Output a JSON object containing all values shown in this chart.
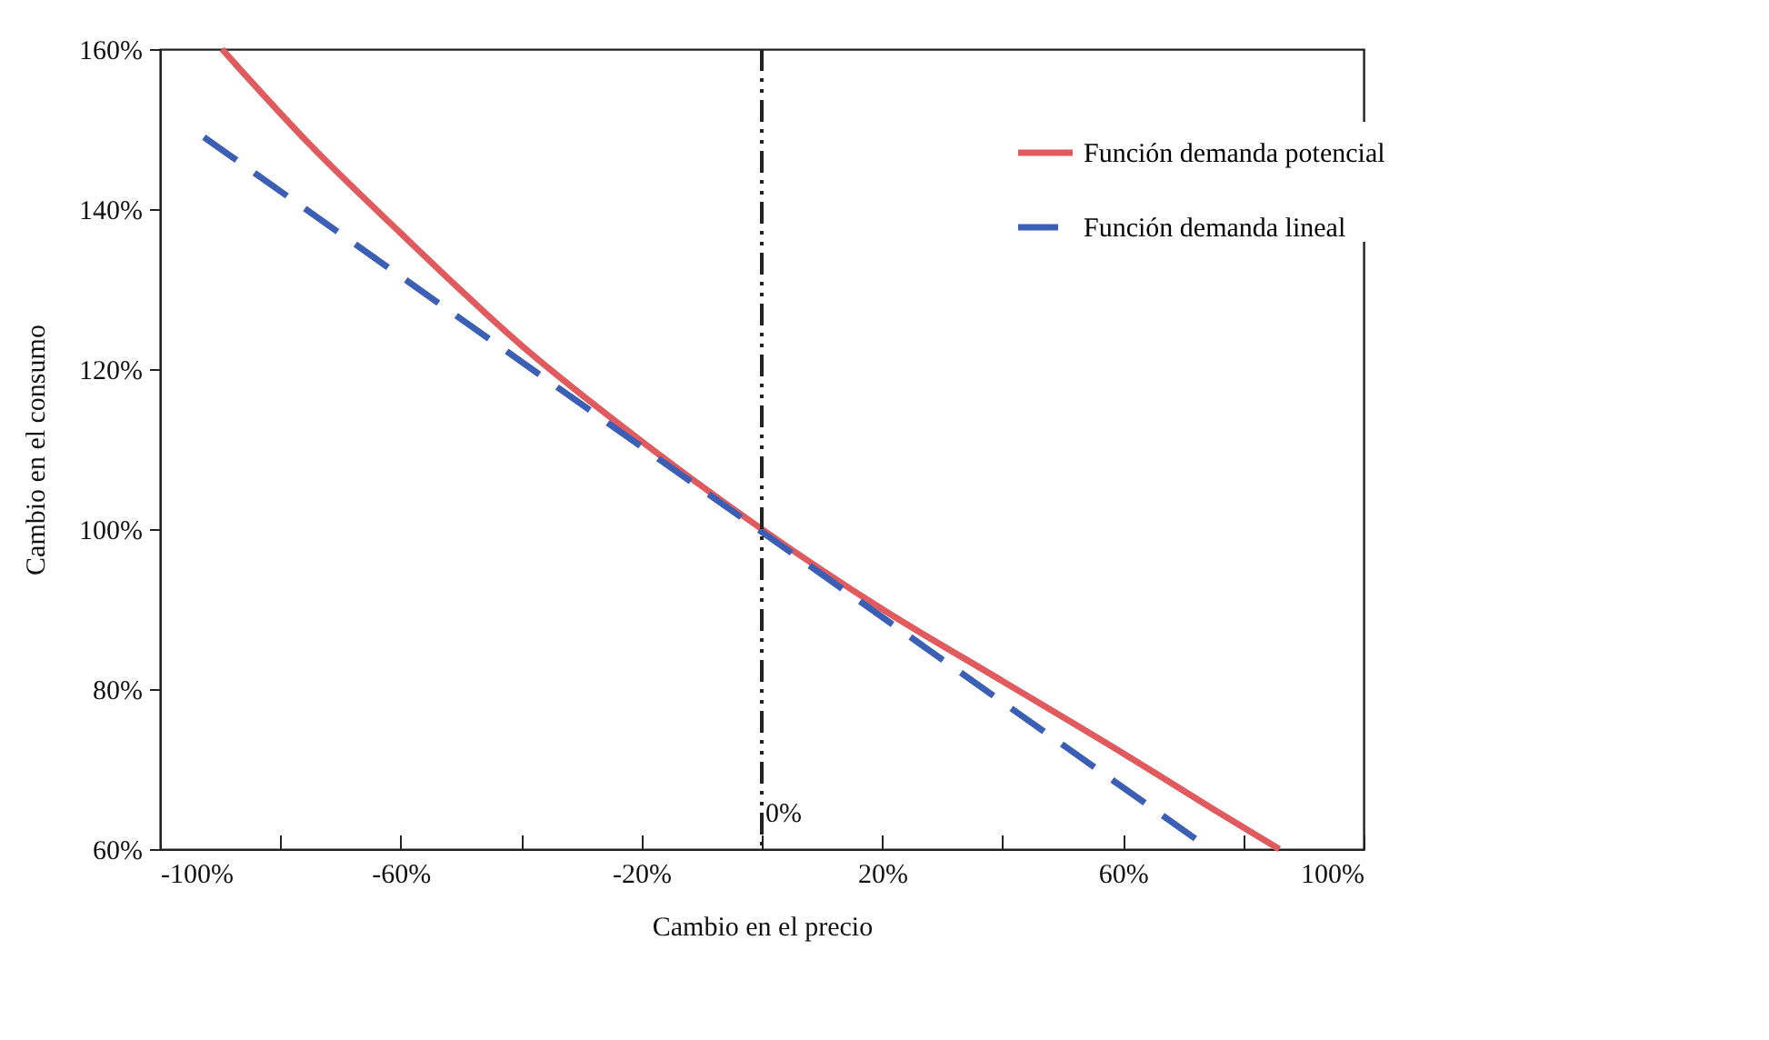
{
  "chart_data": {
    "type": "line",
    "xlabel": "Cambio en el precio",
    "ylabel": "Cambio en el consumo",
    "series": [
      {
        "name": "Función demanda potencial",
        "color": "#e05a5e",
        "line_style": "solid",
        "x": [
          -89.7,
          -75,
          -60,
          -40,
          -20,
          0,
          20,
          40,
          60,
          75,
          86
        ],
        "values": [
          160,
          148,
          137,
          123,
          111,
          100,
          90,
          81,
          72,
          65,
          60
        ]
      },
      {
        "name": "Función demanda lineal",
        "color": "#3a5fb5",
        "line_style": "dashed",
        "x": [
          -92.7,
          74.5
        ],
        "values": [
          149,
          60
        ]
      }
    ],
    "xlim": [
      -100,
      100
    ],
    "xticks": [
      {
        "value": -100,
        "label": "-100%"
      },
      {
        "value": -80,
        "label": null
      },
      {
        "value": -60,
        "label": "-60%"
      },
      {
        "value": -40,
        "label": null
      },
      {
        "value": -20,
        "label": "-20%"
      },
      {
        "value": 0,
        "label": null
      },
      {
        "value": 20,
        "label": "20%"
      },
      {
        "value": 40,
        "label": null
      },
      {
        "value": 60,
        "label": "60%"
      },
      {
        "value": 80,
        "label": null
      },
      {
        "value": 100,
        "label": "100%"
      }
    ],
    "ylim": [
      60,
      160
    ],
    "yticks": [
      {
        "value": 60,
        "label": "60%"
      },
      {
        "value": 80,
        "label": "80%"
      },
      {
        "value": 100,
        "label": "100%"
      },
      {
        "value": 120,
        "label": "120%"
      },
      {
        "value": 140,
        "label": "140%"
      },
      {
        "value": 160,
        "label": "160%"
      }
    ],
    "ref_lines": [
      {
        "axis": "x",
        "value": 0,
        "label": "0%",
        "color": "#222222",
        "line_style": "dashed"
      }
    ],
    "legend": "top right",
    "grid": false,
    "marker": "none"
  }
}
